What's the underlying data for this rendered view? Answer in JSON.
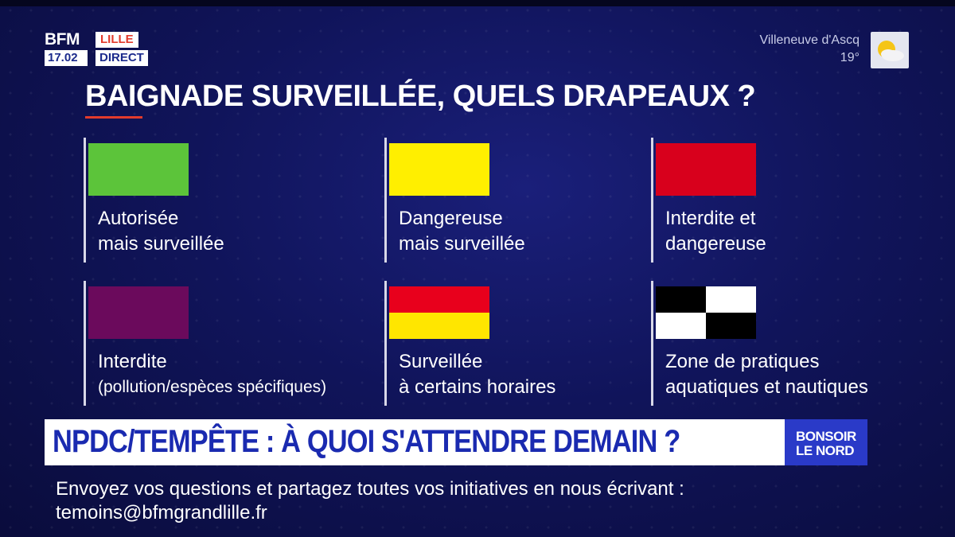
{
  "channel": {
    "logo": "BFM",
    "region": "LILLE",
    "time": "17.02",
    "live": "DIRECT"
  },
  "weather": {
    "location": "Villeneuve d'Ascq",
    "temperature": "19°",
    "icon": "partly-sunny-icon"
  },
  "slide": {
    "title": "BAIGNADE SURVEILLÉE, QUELS DRAPEAUX ?",
    "flags": [
      {
        "colors": [
          "#5cc43a"
        ],
        "pattern": "solid",
        "line1": "Autorisée",
        "line2": "mais surveillée"
      },
      {
        "colors": [
          "#ffef00"
        ],
        "pattern": "solid",
        "line1": "Dangereuse",
        "line2": "mais surveillée"
      },
      {
        "colors": [
          "#d8001c"
        ],
        "pattern": "solid",
        "line1": "Interdite et",
        "line2": "dangereuse"
      },
      {
        "colors": [
          "#6b0a5c"
        ],
        "pattern": "solid",
        "line1": "Interdite",
        "line2": "(pollution/espèces spécifiques)"
      },
      {
        "colors": [
          "#e8001c",
          "#ffe600"
        ],
        "pattern": "horizontal-split",
        "line1": "Surveillée",
        "line2": "à certains horaires"
      },
      {
        "colors": [
          "#000000",
          "#ffffff"
        ],
        "pattern": "checkered",
        "line1": "Zone de pratiques",
        "line2": "aquatiques et nautiques"
      }
    ]
  },
  "banner": {
    "headline": "NPDC/TEMPÊTE : À QUOI S'ATTENDRE DEMAIN ?",
    "show_line1": "BONSOIR",
    "show_line2": "LE NORD"
  },
  "ticker": {
    "line1": "Envoyez vos questions et partagez toutes vos initiatives en nous écrivant :",
    "line2": "temoins@bfmgrandlille.fr"
  }
}
